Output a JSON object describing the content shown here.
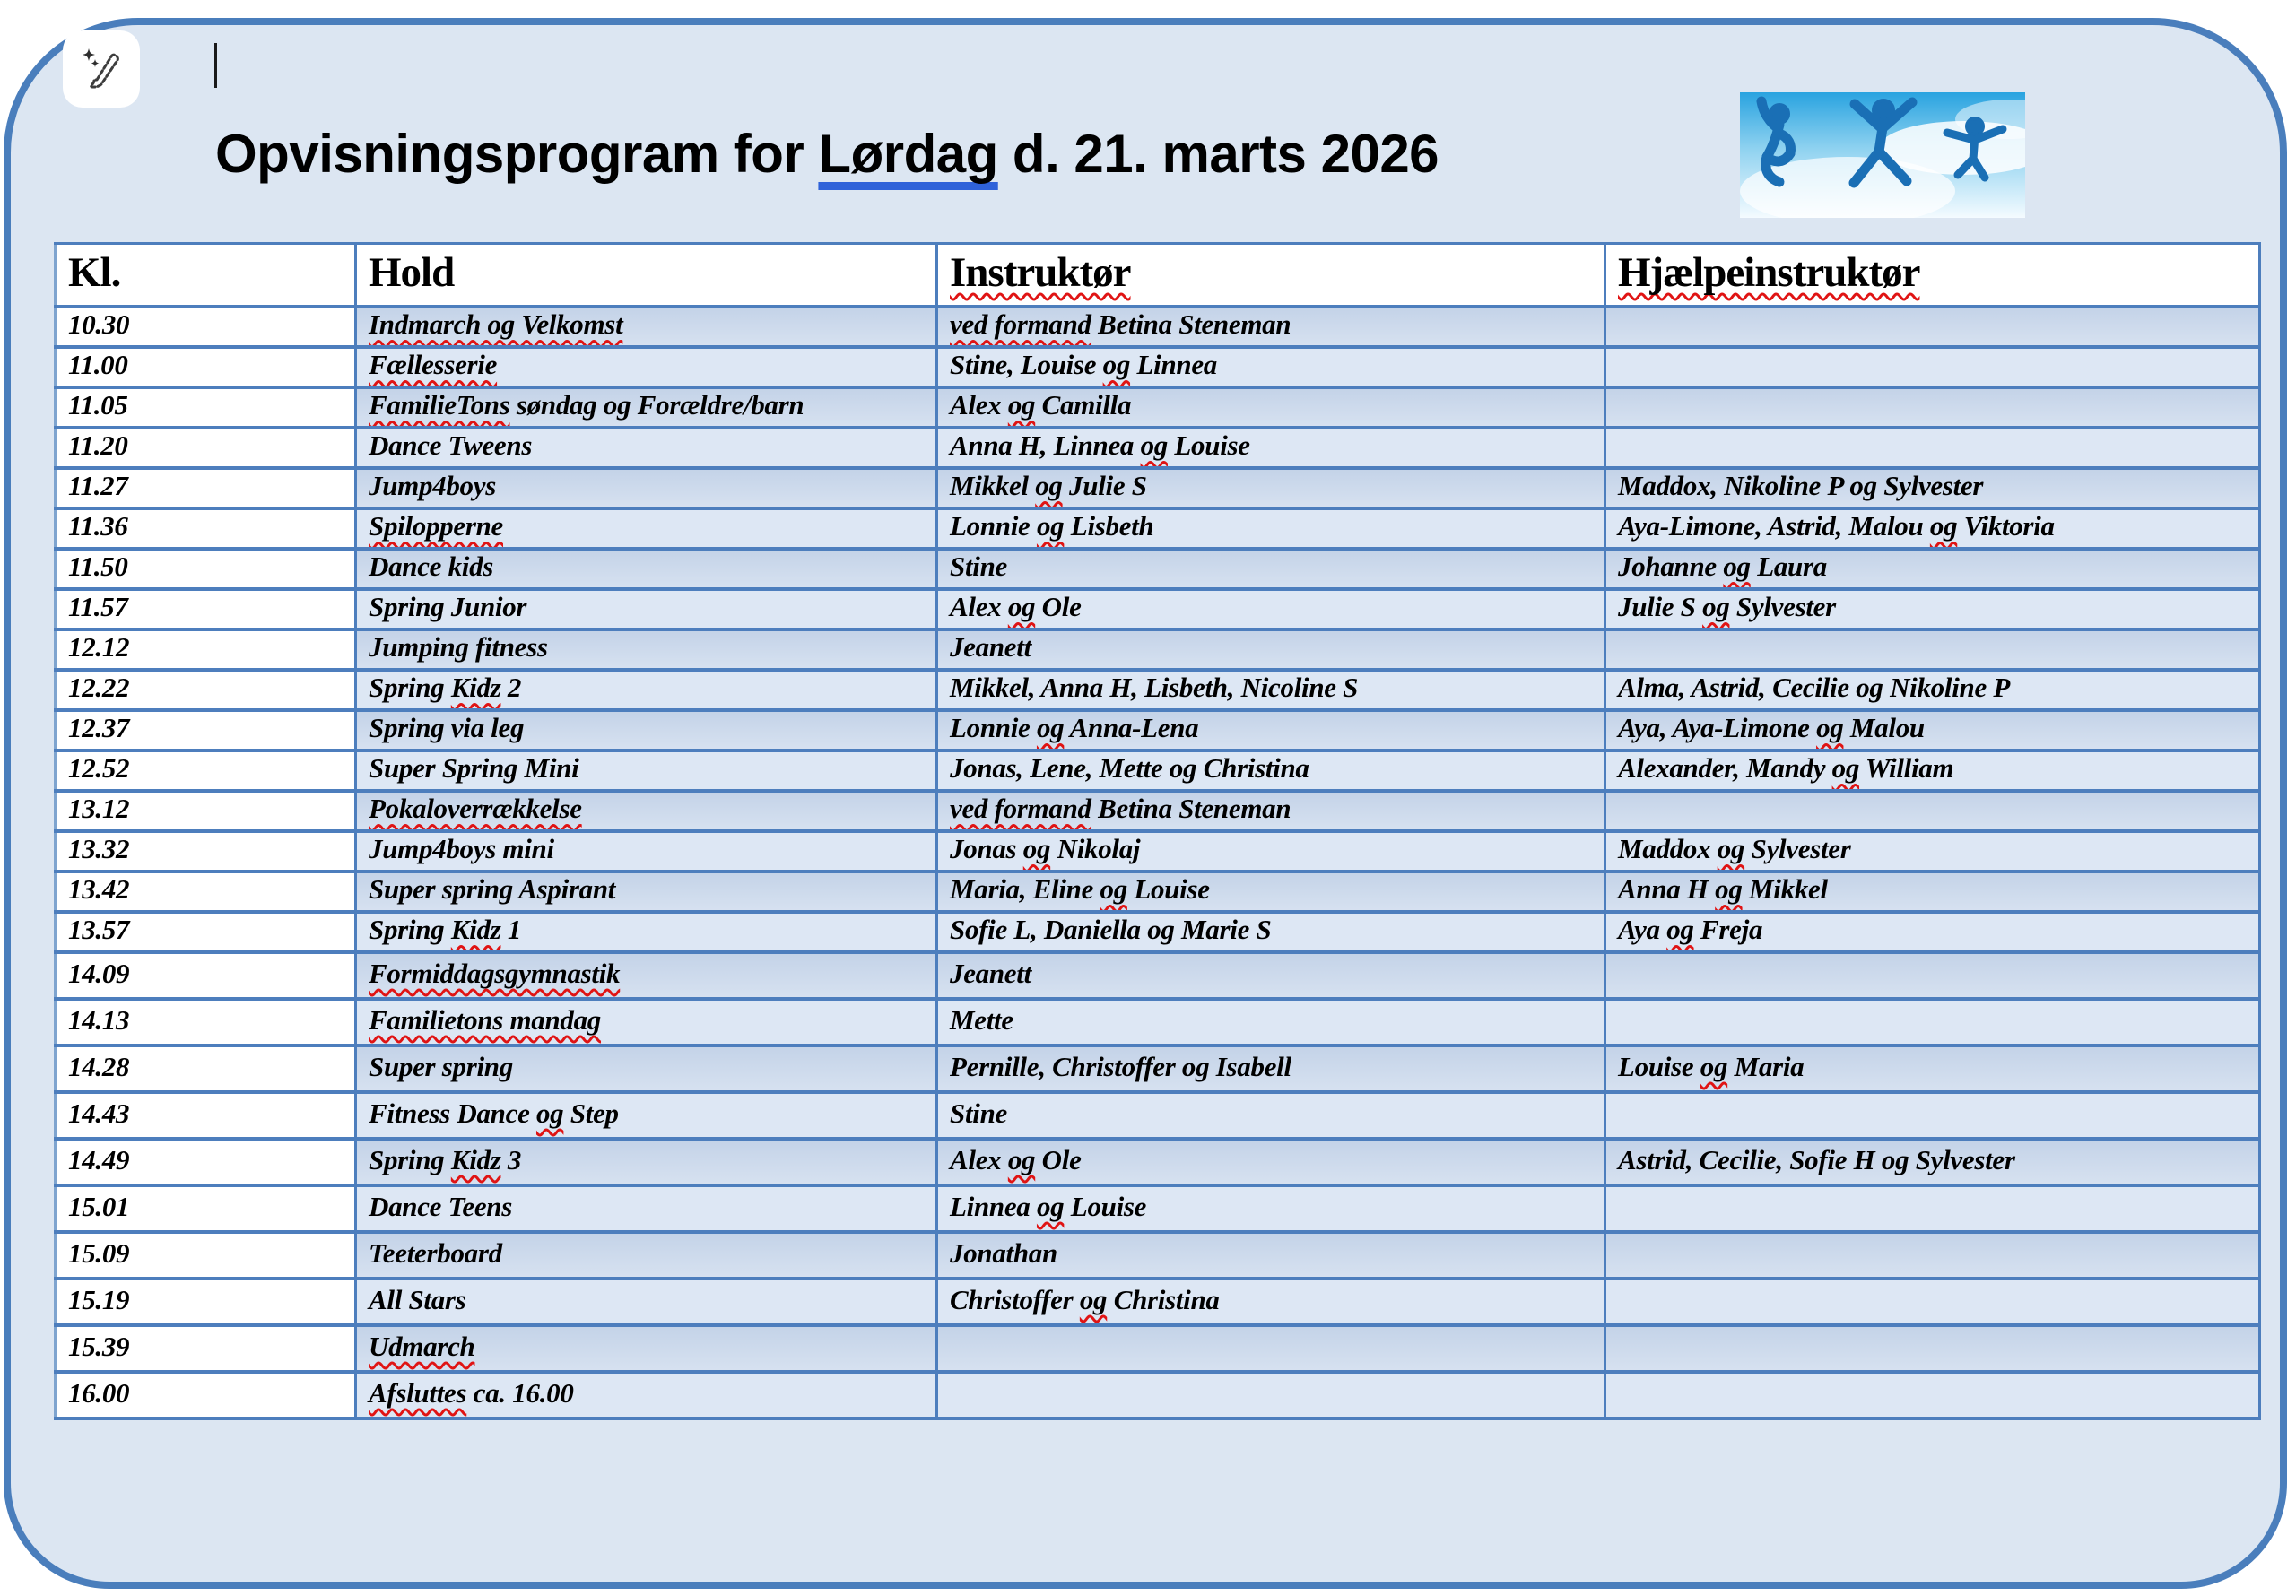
{
  "window": {
    "copilot_button": {
      "icon": "pen-sparkle-icon"
    }
  },
  "document": {
    "title": {
      "full_text": "Opvisningsprogram for Lørdag d. 21. marts 2026",
      "segments": [
        {
          "text": "Opvisningsprogram for ",
          "mark": "none"
        },
        {
          "text": "Lørdag",
          "mark": "grammar"
        },
        {
          "text": " d. 21. marts 2026",
          "mark": "none"
        }
      ]
    },
    "logo": {
      "name": "jumping-figures-logo",
      "description": "three blue jumping silhouettes on a sky background with reflection"
    },
    "table": {
      "headers": [
        {
          "label": "Kl.",
          "spellcheck": false
        },
        {
          "label": "Hold",
          "spellcheck": false
        },
        {
          "label": "Instruktør",
          "spellcheck": true
        },
        {
          "label": "Hjælpeinstruktør",
          "spellcheck": true
        }
      ],
      "rows": [
        {
          "time": "10.30",
          "hold": "[[Indmarch og Velkomst]]",
          "instruktor": "[[ved formand]] Betina Steneman",
          "hjaelpeinstruktor": ""
        },
        {
          "time": "11.00",
          "hold": "[[Fællesserie]]",
          "instruktor": "Stine, Louise [[og]] Linnea",
          "hjaelpeinstruktor": ""
        },
        {
          "time": "11.05",
          "hold": "[[FamilieTons]] søndag og Forældre/barn",
          "instruktor": "Alex [[og]] Camilla",
          "hjaelpeinstruktor": ""
        },
        {
          "time": "11.20",
          "hold": "Dance Tweens",
          "instruktor": "Anna H, Linnea [[og]] Louise",
          "hjaelpeinstruktor": ""
        },
        {
          "time": "11.27",
          "hold": "Jump4boys",
          "instruktor": "Mikkel [[og]] Julie S",
          "hjaelpeinstruktor": "Maddox, Nikoline P og Sylvester"
        },
        {
          "time": "11.36",
          "hold": "[[Spilopperne]]",
          "instruktor": "Lonnie [[og]] Lisbeth",
          "hjaelpeinstruktor": "Aya-Limone, Astrid, Malou [[og]] Viktoria"
        },
        {
          "time": "11.50",
          "hold": "Dance kids",
          "instruktor": "Stine",
          "hjaelpeinstruktor": "Johanne [[og]] Laura"
        },
        {
          "time": "11.57",
          "hold": "Spring Junior",
          "instruktor": "Alex [[og]] Ole",
          "hjaelpeinstruktor": "Julie S [[og]] Sylvester"
        },
        {
          "time": "12.12",
          "hold": "Jumping fitness",
          "instruktor": "Jeanett",
          "hjaelpeinstruktor": ""
        },
        {
          "time": "12.22",
          "hold": "Spring [[Kidz]] 2",
          "instruktor": "Mikkel, Anna H, Lisbeth, Nicoline S",
          "hjaelpeinstruktor": "Alma, Astrid, Cecilie og Nikoline P"
        },
        {
          "time": "12.37",
          "hold": "Spring via leg",
          "instruktor": "Lonnie [[og]] Anna-Lena",
          "hjaelpeinstruktor": "Aya, Aya-Limone [[og]] Malou"
        },
        {
          "time": "12.52",
          "hold": "Super Spring Mini",
          "instruktor": "Jonas, Lene, Mette og Christina",
          "hjaelpeinstruktor": "Alexander, Mandy [[og]] William"
        },
        {
          "time": "13.12",
          "hold": "[[Pokaloverrækkelse]]",
          "instruktor": "[[ved formand]] Betina Steneman",
          "hjaelpeinstruktor": ""
        },
        {
          "time": "13.32",
          "hold": "Jump4boys mini",
          "instruktor": "Jonas [[og]] Nikolaj",
          "hjaelpeinstruktor": "Maddox [[og]] Sylvester"
        },
        {
          "time": "13.42",
          "hold": "Super spring Aspirant",
          "instruktor": "Maria, Eline [[og]] Louise",
          "hjaelpeinstruktor": "Anna H [[og]] Mikkel"
        },
        {
          "time": "13.57",
          "hold": "Spring [[Kidz]] 1",
          "instruktor": "Sofie L, Daniella og Marie S",
          "hjaelpeinstruktor": "Aya [[og]] Freja"
        },
        {
          "time": "14.09",
          "hold": "[[Formiddagsgymnastik]]",
          "instruktor": "Jeanett",
          "hjaelpeinstruktor": ""
        },
        {
          "time": "14.13",
          "hold": "[[Familietons mandag]]",
          "instruktor": "Mette",
          "hjaelpeinstruktor": ""
        },
        {
          "time": "14.28",
          "hold": "Super spring",
          "instruktor": "Pernille, Christoffer og Isabell",
          "hjaelpeinstruktor": "Louise [[og]] Maria"
        },
        {
          "time": "14.43",
          "hold": "Fitness Dance [[og]] Step",
          "instruktor": "Stine",
          "hjaelpeinstruktor": ""
        },
        {
          "time": "14.49",
          "hold": "Spring [[Kidz]] 3",
          "instruktor": "Alex [[og]] Ole",
          "hjaelpeinstruktor": "Astrid, Cecilie, Sofie H og Sylvester"
        },
        {
          "time": "15.01",
          "hold": "Dance Teens",
          "instruktor": "Linnea [[og]] Louise",
          "hjaelpeinstruktor": ""
        },
        {
          "time": "15.09",
          "hold": "Teeterboard",
          "instruktor": "Jonathan",
          "hjaelpeinstruktor": ""
        },
        {
          "time": "15.19",
          "hold": "All Stars",
          "instruktor": "Christoffer [[og]] Christina",
          "hjaelpeinstruktor": ""
        },
        {
          "time": "15.39",
          "hold": "[[Udmarch]]",
          "instruktor": "",
          "hjaelpeinstruktor": ""
        },
        {
          "time": "16.00",
          "hold": "[[Afsluttes]] ca. 16.00",
          "instruktor": "",
          "hjaelpeinstruktor": ""
        }
      ]
    }
  },
  "colors": {
    "page_background": "#ffffff",
    "panel_fill": "#dce6f2",
    "panel_border": "#4a7ebc",
    "table_line": "#4d7ebd",
    "row_dark_top": "#c4d3e8",
    "row_dark_bottom": "#d6e1f0",
    "row_light": "#dde7f4",
    "spellcheck_red": "#e01414",
    "grammar_blue": "#2f62d9",
    "text_color": "#000000"
  }
}
